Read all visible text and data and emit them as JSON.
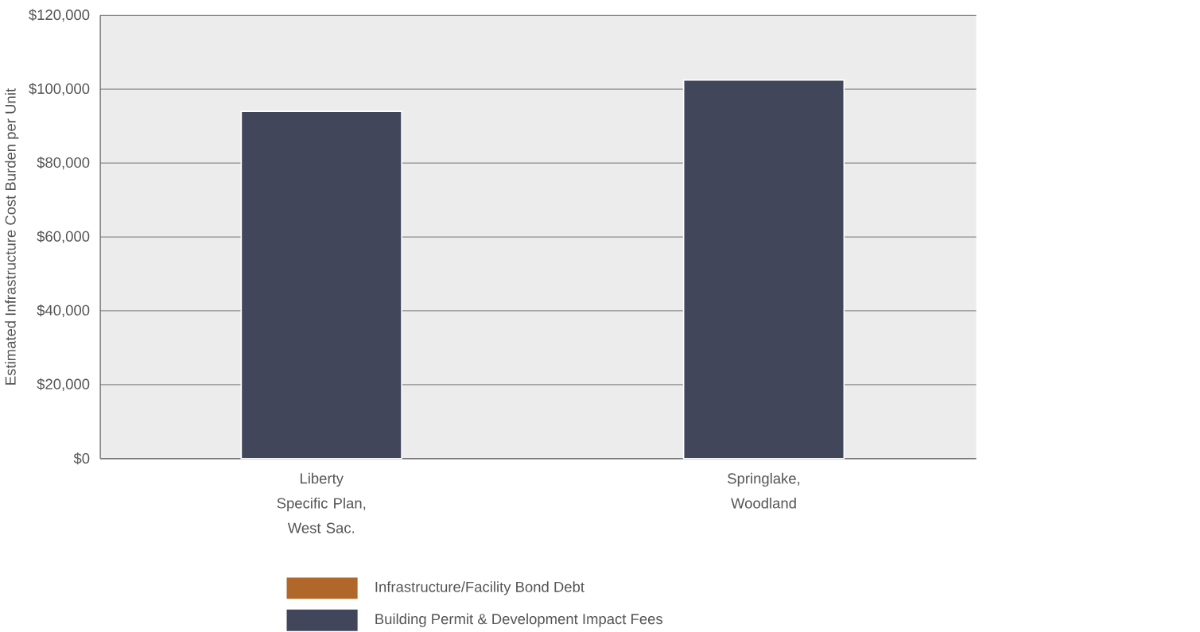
{
  "chart_data": {
    "type": "bar",
    "stacked": true,
    "ylabel": "Estimated Infrastructure Cost Burden per Unit",
    "categories": [
      "Liberty Specific Plan, West Sac.",
      "Springlake, Woodland"
    ],
    "series": [
      {
        "name": "Infrastructure/Facility Bond Debt",
        "color": "#b0682a",
        "values": [
          0,
          0
        ]
      },
      {
        "name": "Building Permit & Development Impact Fees",
        "color": "#41465b",
        "values": [
          94000,
          102500
        ]
      }
    ],
    "ylim": [
      0,
      120000
    ],
    "yticks": [
      {
        "value": 0,
        "label": "$0"
      },
      {
        "value": 20000,
        "label": "$20,000"
      },
      {
        "value": 40000,
        "label": "$40,000"
      },
      {
        "value": 60000,
        "label": "$60,000"
      },
      {
        "value": 80000,
        "label": "$80,000"
      },
      {
        "value": 100000,
        "label": "$100,000"
      },
      {
        "value": 120000,
        "label": "$120,000"
      }
    ],
    "grid": "y",
    "legend": "bottom left"
  }
}
